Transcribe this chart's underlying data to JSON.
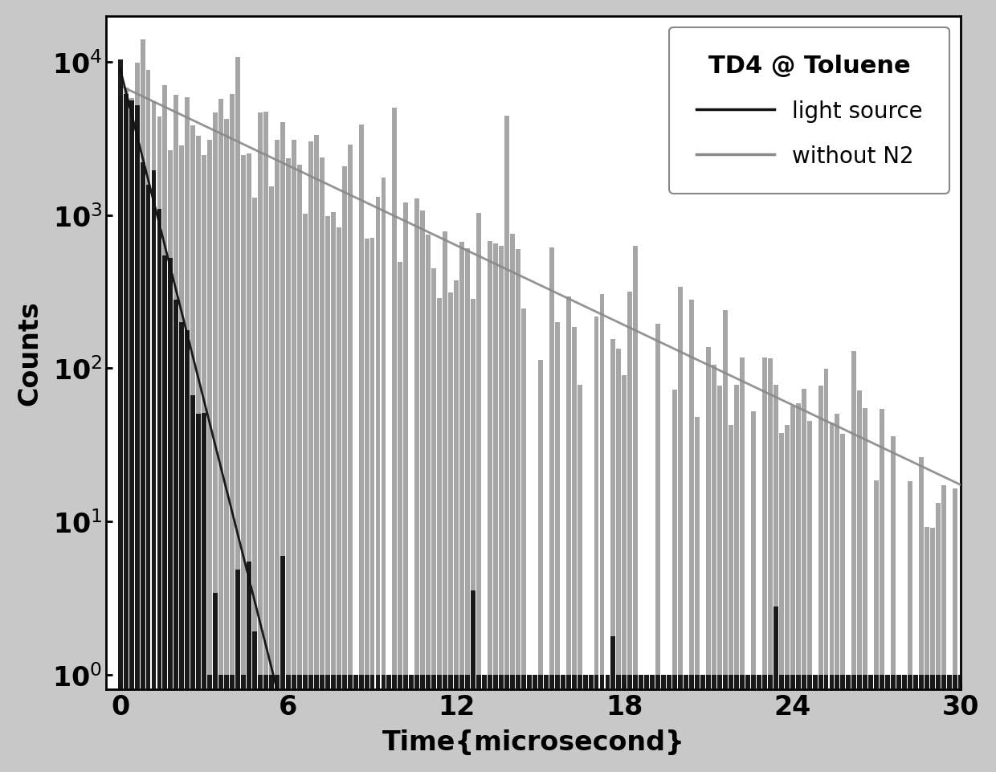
{
  "title": "TD4 @ Toluene",
  "xlabel": "Time{microsecond}",
  "ylabel": "Counts",
  "xlim": [
    -0.5,
    30
  ],
  "ylim": [
    0.8,
    20000
  ],
  "xticks": [
    0,
    6,
    12,
    18,
    24,
    30
  ],
  "ytick_vals": [
    1,
    10,
    100,
    1000,
    10000
  ],
  "ytick_labels": [
    "10$^0$",
    "10$^1$",
    "10$^2$",
    "10$^3$",
    "10$^4$"
  ],
  "light_source_color": "#111111",
  "without_n2_color": "#888888",
  "background_color": "#c8c8c8",
  "legend_title": "TD4 @ Toluene",
  "legend_label1": "light source",
  "legend_label2": "without N2",
  "fig_width": 12.4,
  "fig_height": 9.62,
  "dpi": 100,
  "ls_decay_tau": 0.6,
  "ls_peak": 9000,
  "wn2_decay_tau": 5.0,
  "wn2_peak": 7000,
  "bar_dt": 0.2,
  "seed": 42
}
